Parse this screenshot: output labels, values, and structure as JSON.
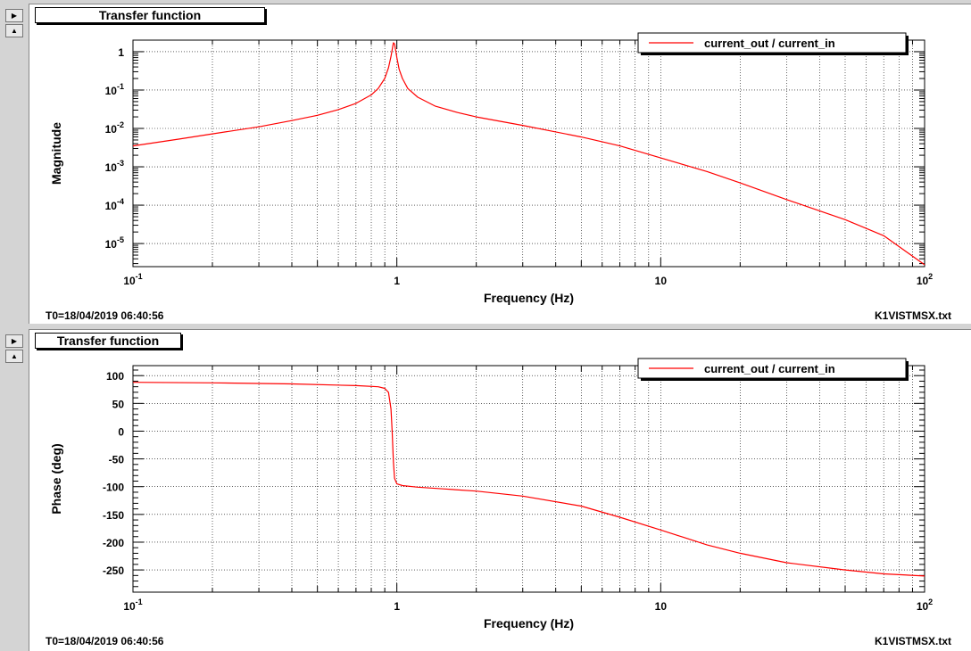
{
  "panels": [
    {
      "title": "Transfer function",
      "timestamp": "T0=18/04/2019 06:40:56",
      "filename": "K1VISTMSX.txt"
    },
    {
      "title": "Transfer function",
      "timestamp": "T0=18/04/2019 06:40:56",
      "filename": "K1VISTMSX.txt"
    }
  ],
  "colors": {
    "trace": "#ff0000",
    "grid": "#000000",
    "background": "#ffffff",
    "frame": "#d4d4d4"
  },
  "icons": {
    "expand": "triangle-right-icon",
    "collapse": "triangle-up-icon"
  },
  "chart_data": [
    {
      "type": "line",
      "title": "Transfer function",
      "xlabel": "Frequency (Hz)",
      "ylabel": "Magnitude",
      "xscale": "log",
      "yscale": "log",
      "xlim": [
        0.1,
        100
      ],
      "ylim": [
        2.5e-06,
        2
      ],
      "grid": true,
      "legend_position": "top-right",
      "x_ticks": [
        {
          "value": 0.1,
          "base": "10",
          "exp": "-1"
        },
        {
          "value": 1,
          "base": "1",
          "exp": ""
        },
        {
          "value": 10,
          "base": "10",
          "exp": ""
        },
        {
          "value": 100,
          "base": "10",
          "exp": "2"
        }
      ],
      "y_ticks": [
        {
          "value": 1,
          "base": "1",
          "exp": ""
        },
        {
          "value": 0.1,
          "base": "10",
          "exp": "-1"
        },
        {
          "value": 0.01,
          "base": "10",
          "exp": "-2"
        },
        {
          "value": 0.001,
          "base": "10",
          "exp": "-3"
        },
        {
          "value": 0.0001,
          "base": "10",
          "exp": "-4"
        },
        {
          "value": 1e-05,
          "base": "10",
          "exp": "-5"
        }
      ],
      "series": [
        {
          "name": "current_out / current_in",
          "color": "#ff0000",
          "points": [
            [
              0.1,
              0.0035
            ],
            [
              0.15,
              0.0053
            ],
            [
              0.2,
              0.0072
            ],
            [
              0.3,
              0.011
            ],
            [
              0.4,
              0.016
            ],
            [
              0.5,
              0.022
            ],
            [
              0.6,
              0.031
            ],
            [
              0.7,
              0.045
            ],
            [
              0.8,
              0.075
            ],
            [
              0.85,
              0.11
            ],
            [
              0.9,
              0.2
            ],
            [
              0.93,
              0.38
            ],
            [
              0.95,
              0.75
            ],
            [
              0.97,
              1.7
            ],
            [
              0.98,
              1.6
            ],
            [
              1.0,
              0.7
            ],
            [
              1.02,
              0.35
            ],
            [
              1.05,
              0.2
            ],
            [
              1.1,
              0.11
            ],
            [
              1.2,
              0.065
            ],
            [
              1.4,
              0.038
            ],
            [
              1.7,
              0.026
            ],
            [
              2,
              0.02
            ],
            [
              3,
              0.012
            ],
            [
              5,
              0.006
            ],
            [
              7,
              0.0035
            ],
            [
              10,
              0.0017
            ],
            [
              15,
              0.00075
            ],
            [
              20,
              0.00038
            ],
            [
              30,
              0.00014
            ],
            [
              50,
              4.2e-05
            ],
            [
              70,
              1.6e-05
            ],
            [
              100,
              2.8e-06
            ]
          ]
        }
      ]
    },
    {
      "type": "line",
      "title": "Transfer function",
      "xlabel": "Frequency (Hz)",
      "ylabel": "Phase (deg)",
      "xscale": "log",
      "yscale": "linear",
      "xlim": [
        0.1,
        100
      ],
      "ylim": [
        -290,
        118
      ],
      "grid": true,
      "legend_position": "top-right",
      "x_ticks": [
        {
          "value": 0.1,
          "base": "10",
          "exp": "-1"
        },
        {
          "value": 1,
          "base": "1",
          "exp": ""
        },
        {
          "value": 10,
          "base": "10",
          "exp": ""
        },
        {
          "value": 100,
          "base": "10",
          "exp": "2"
        }
      ],
      "y_ticks": [
        {
          "value": 100,
          "base": "100",
          "exp": ""
        },
        {
          "value": 50,
          "base": "50",
          "exp": ""
        },
        {
          "value": 0,
          "base": "0",
          "exp": ""
        },
        {
          "value": -50,
          "base": "-50",
          "exp": ""
        },
        {
          "value": -100,
          "base": "-100",
          "exp": ""
        },
        {
          "value": -150,
          "base": "-150",
          "exp": ""
        },
        {
          "value": -200,
          "base": "-200",
          "exp": ""
        },
        {
          "value": -250,
          "base": "-250",
          "exp": ""
        }
      ],
      "series": [
        {
          "name": "current_out / current_in",
          "color": "#ff0000",
          "points": [
            [
              0.1,
              88
            ],
            [
              0.2,
              87
            ],
            [
              0.4,
              85
            ],
            [
              0.7,
              82
            ],
            [
              0.85,
              80
            ],
            [
              0.9,
              77
            ],
            [
              0.93,
              70
            ],
            [
              0.95,
              40
            ],
            [
              0.96,
              0
            ],
            [
              0.97,
              -55
            ],
            [
              0.98,
              -85
            ],
            [
              1.0,
              -95
            ],
            [
              1.05,
              -98
            ],
            [
              1.2,
              -101
            ],
            [
              1.5,
              -104
            ],
            [
              2,
              -108
            ],
            [
              3,
              -117
            ],
            [
              5,
              -135
            ],
            [
              7,
              -155
            ],
            [
              10,
              -178
            ],
            [
              15,
              -205
            ],
            [
              20,
              -220
            ],
            [
              30,
              -237
            ],
            [
              50,
              -250
            ],
            [
              70,
              -257
            ],
            [
              100,
              -261
            ]
          ]
        }
      ]
    }
  ]
}
